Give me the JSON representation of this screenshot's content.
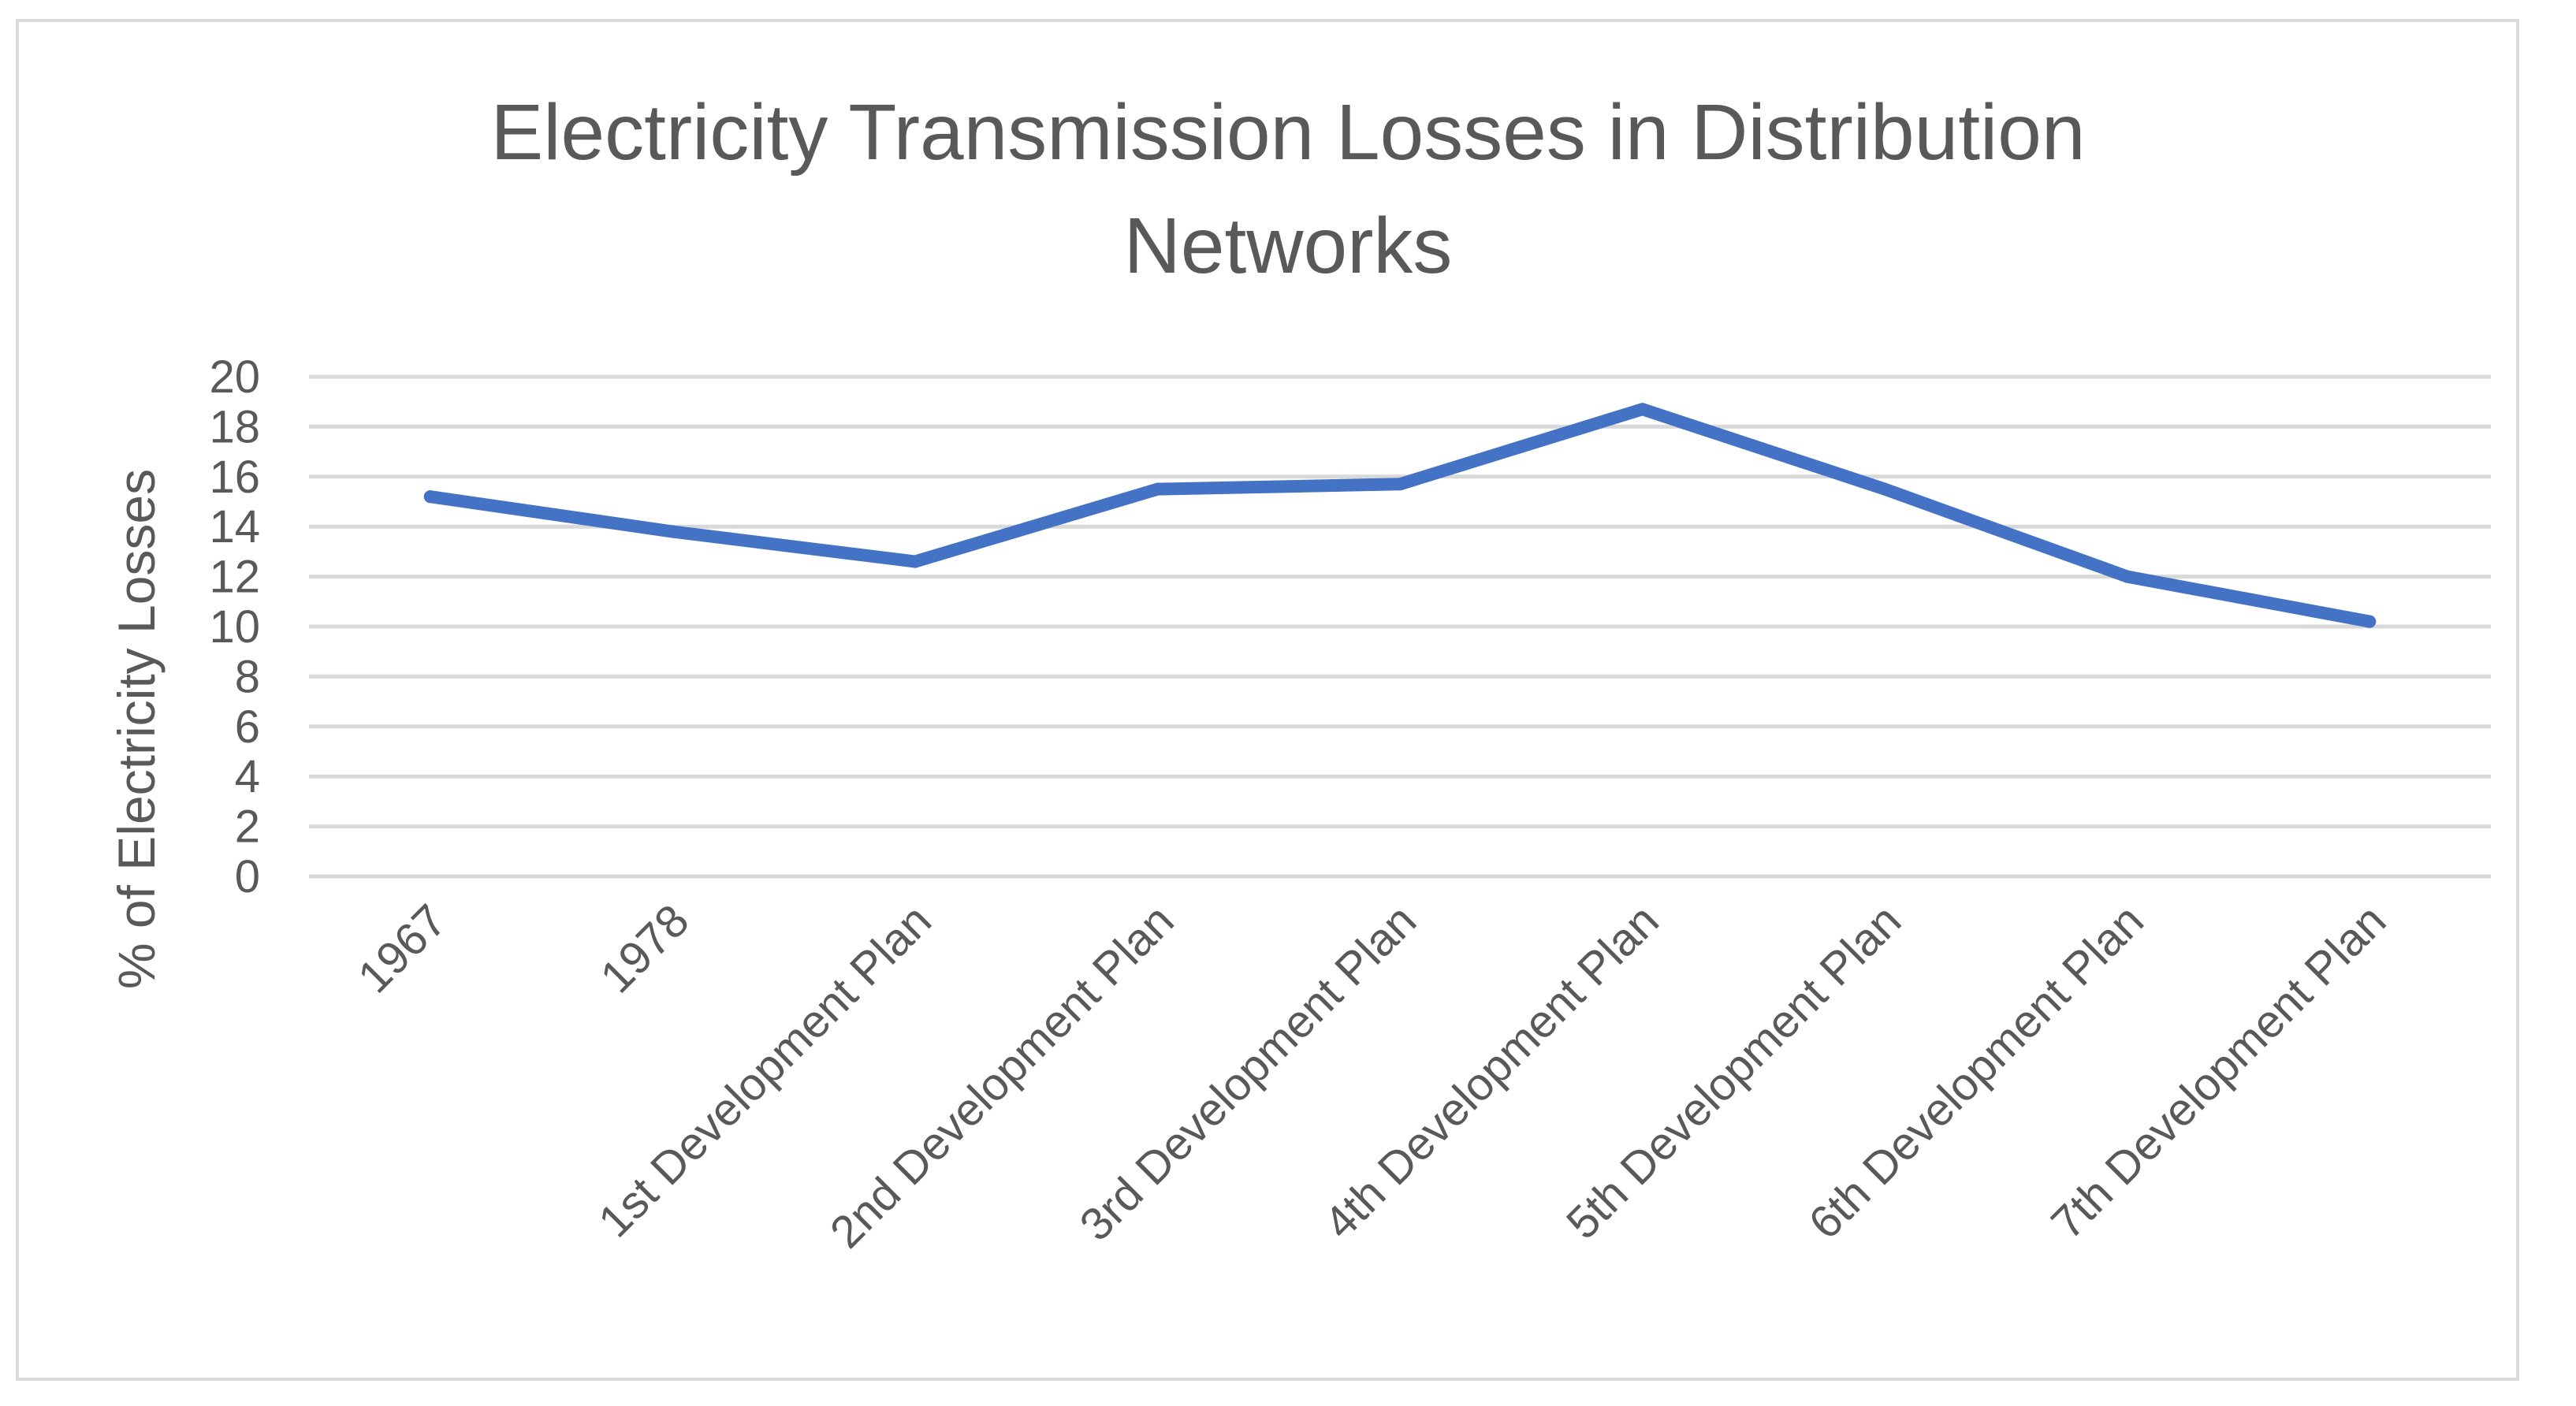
{
  "chart_data": {
    "type": "line",
    "title_lines": [
      "Electricity Transmission Losses in Distribution",
      "Networks"
    ],
    "xlabel": "",
    "ylabel": "% of Electricity Losses",
    "ylim": [
      0,
      20
    ],
    "yticks": [
      "0",
      "2",
      "4",
      "6",
      "8",
      "10",
      "12",
      "14",
      "16",
      "18",
      "20"
    ],
    "categories": [
      "1967",
      "1978",
      "1st Development Plan",
      "2nd Development Plan",
      "3rd Development Plan",
      "4th Development Plan",
      "5th Development Plan",
      "6th Development Plan",
      "7th Development Plan"
    ],
    "series": [
      {
        "values": [
          15.2,
          13.8,
          12.6,
          15.5,
          15.7,
          18.7,
          15.5,
          12.0,
          10.2
        ],
        "color": "#4472c4"
      }
    ],
    "grid": true,
    "legend": "none"
  }
}
